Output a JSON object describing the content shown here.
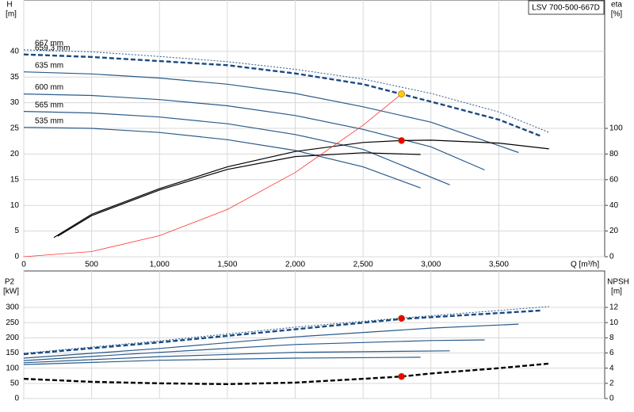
{
  "chart_data": [
    {
      "type": "line",
      "title": "LSV 700-500-667D",
      "ylabel": "H",
      "yunit": "[m]",
      "y2label": "eta",
      "y2unit": "[%]",
      "xlabel": "Q [m³/h]",
      "xlim": [
        0,
        4280
      ],
      "xticks": [
        0,
        500,
        {
          "value": 1000,
          "label": "1,000"
        },
        {
          "value": 1500,
          "label": "1,500"
        },
        {
          "value": 2000,
          "label": "2,000"
        },
        {
          "value": 2500,
          "label": "2,500"
        },
        {
          "value": 3000,
          "label": "3,000"
        },
        {
          "value": 3500,
          "label": "3,500"
        }
      ],
      "ylim": [
        0,
        50
      ],
      "yticks": [
        0,
        5,
        10,
        15,
        20,
        25,
        30,
        35,
        40
      ],
      "y2lim": [
        0,
        200
      ],
      "y2ticks": [
        0,
        20,
        40,
        60,
        80,
        100
      ],
      "grid": true,
      "series": [
        {
          "name": "667 mm",
          "color": "#2a5a8a",
          "style": "dotted",
          "x": [
            0,
            500,
            1000,
            1500,
            2000,
            2500,
            3000,
            3500,
            3870
          ],
          "values": [
            40.3,
            39.9,
            39.0,
            38.0,
            36.5,
            34.6,
            31.8,
            28.2,
            24.2
          ]
        },
        {
          "name": "659,3 mm",
          "color": "#1a4a80",
          "style": "dashed",
          "x": [
            0,
            500,
            1000,
            1500,
            2000,
            2500,
            3000,
            3500,
            3820
          ],
          "values": [
            39.4,
            38.9,
            38.1,
            37.3,
            35.7,
            33.6,
            30.2,
            26.7,
            23.4
          ]
        },
        {
          "name": "635 mm",
          "color": "#2a5a8a",
          "style": "solid",
          "x": [
            0,
            500,
            1000,
            1500,
            2000,
            2500,
            3000,
            3646
          ],
          "values": [
            36.0,
            35.6,
            34.8,
            33.6,
            31.8,
            29.2,
            26.2,
            20.3
          ]
        },
        {
          "name": "600 mm",
          "color": "#2a5a8a",
          "style": "solid",
          "x": [
            0,
            500,
            1000,
            1500,
            2000,
            2500,
            3000,
            3396
          ],
          "values": [
            31.7,
            31.4,
            30.6,
            29.4,
            27.5,
            24.8,
            21.4,
            16.9
          ]
        },
        {
          "name": "565 mm",
          "color": "#2a5a8a",
          "style": "solid",
          "x": [
            0,
            500,
            1000,
            1500,
            2000,
            2500,
            3139
          ],
          "values": [
            28.3,
            28.0,
            27.2,
            25.9,
            23.8,
            20.9,
            14.0
          ]
        },
        {
          "name": "535 mm",
          "color": "#2a5a8a",
          "style": "solid",
          "x": [
            0,
            500,
            1000,
            1500,
            2000,
            2500,
            2923
          ],
          "values": [
            25.2,
            25.0,
            24.2,
            22.8,
            20.7,
            17.5,
            13.4
          ]
        },
        {
          "color": "#000000",
          "style": "solid",
          "axis": "y2",
          "x": [
            222,
            500,
            1000,
            1500,
            2000,
            2500,
            2783,
            3000,
            3500,
            3870
          ],
          "values": [
            15,
            33,
            53,
            70,
            82,
            89,
            90.5,
            90.8,
            88.5,
            84
          ]
        },
        {
          "color": "#000000",
          "style": "solid",
          "axis": "y2",
          "x": [
            250,
            500,
            1000,
            1500,
            2000,
            2500,
            2923
          ],
          "values": [
            16,
            32,
            52,
            68,
            78,
            81,
            79.6
          ]
        },
        {
          "color": "#ff3333",
          "style": "thin",
          "x": [
            0,
            500,
            1000,
            1500,
            2000,
            2500,
            2783
          ],
          "values": [
            0,
            1.0,
            4.1,
            9.2,
            16.4,
            25.6,
            31.7
          ]
        },
        {
          "color": "#ffcc00",
          "marker": true,
          "x": [
            2783
          ],
          "values": [
            31.7
          ]
        },
        {
          "color": "#ee0000",
          "marker": true,
          "axis": "y2",
          "x": [
            2783
          ],
          "values": [
            90.5
          ]
        }
      ]
    },
    {
      "type": "line",
      "ylabel": "P2",
      "yunit": "[kW]",
      "y2label": "NPSH",
      "y2unit": "[m]",
      "xlim": [
        0,
        4280
      ],
      "ylim": [
        0,
        420
      ],
      "yticks": [
        0,
        50,
        100,
        150,
        200,
        250,
        300
      ],
      "y2lim": [
        0,
        16.8
      ],
      "y2ticks": [
        0,
        2,
        4,
        6,
        8,
        10,
        12
      ],
      "grid": true,
      "series": [
        {
          "color": "#2a5a8a",
          "style": "dotted",
          "x": [
            0,
            1000,
            2000,
            2783,
            3870
          ],
          "values": [
            149,
            190,
            235,
            265,
            303
          ]
        },
        {
          "color": "#1a4a80",
          "style": "dashed",
          "x": [
            0,
            1000,
            2000,
            2783,
            3820
          ],
          "values": [
            146,
            185,
            228,
            262,
            290
          ]
        },
        {
          "color": "#2a5a8a",
          "style": "solid",
          "x": [
            0,
            1000,
            2000,
            3000,
            3646
          ],
          "values": [
            133,
            165,
            203,
            232,
            245
          ]
        },
        {
          "color": "#2a5a8a",
          "style": "solid",
          "x": [
            0,
            1000,
            2000,
            3000,
            3396
          ],
          "values": [
            125,
            152,
            178,
            191,
            193
          ]
        },
        {
          "color": "#2a5a8a",
          "style": "solid",
          "x": [
            0,
            1000,
            2000,
            3139
          ],
          "values": [
            118,
            138,
            152,
            157
          ]
        },
        {
          "color": "#2a5a8a",
          "style": "solid",
          "x": [
            0,
            1000,
            2000,
            2923
          ],
          "values": [
            112,
            126,
            133,
            136
          ]
        },
        {
          "color": "#000000",
          "style": "dashed",
          "axis": "y2",
          "x": [
            0,
            500,
            1000,
            1500,
            2000,
            2500,
            2783,
            3000,
            3500,
            3870
          ],
          "values": [
            2.6,
            2.2,
            2.0,
            1.9,
            2.1,
            2.6,
            2.9,
            3.3,
            4.0,
            4.6
          ]
        },
        {
          "color": "#ee0000",
          "marker": true,
          "x": [
            2783
          ],
          "values": [
            264
          ]
        },
        {
          "color": "#ee0000",
          "marker": true,
          "axis": "y2",
          "x": [
            2783
          ],
          "values": [
            2.9
          ]
        }
      ]
    }
  ]
}
